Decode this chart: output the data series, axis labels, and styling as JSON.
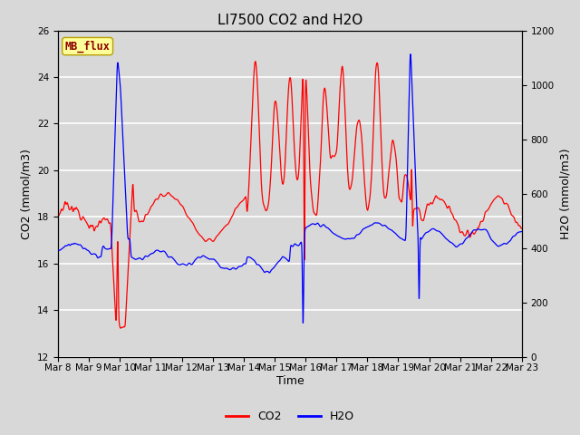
{
  "title": "LI7500 CO2 and H2O",
  "xlabel": "Time",
  "ylabel_left": "CO2 (mmol/m3)",
  "ylabel_right": "H2O (mmol/m3)",
  "ylim_left": [
    12,
    26
  ],
  "ylim_right": [
    0,
    1200
  ],
  "yticks_left": [
    12,
    14,
    16,
    18,
    20,
    22,
    24,
    26
  ],
  "yticks_right": [
    0,
    200,
    400,
    600,
    800,
    1000,
    1200
  ],
  "xtick_labels": [
    "Mar 8",
    "Mar 9",
    "Mar 10",
    "Mar 11",
    "Mar 12",
    "Mar 13",
    "Mar 14",
    "Mar 15",
    "Mar 16",
    "Mar 17",
    "Mar 18",
    "Mar 19",
    "Mar 20",
    "Mar 21",
    "Mar 22",
    "Mar 23"
  ],
  "co2_color": "#ff0000",
  "h2o_color": "#0000ff",
  "bg_color": "#d8d8d8",
  "grid_color": "#ffffff",
  "annotation_text": "MB_flux",
  "annotation_bg": "#ffff99",
  "annotation_edge": "#b8a000",
  "legend_co2": "CO2",
  "legend_h2o": "H2O",
  "title_fontsize": 11,
  "axis_fontsize": 9,
  "tick_fontsize": 7.5
}
